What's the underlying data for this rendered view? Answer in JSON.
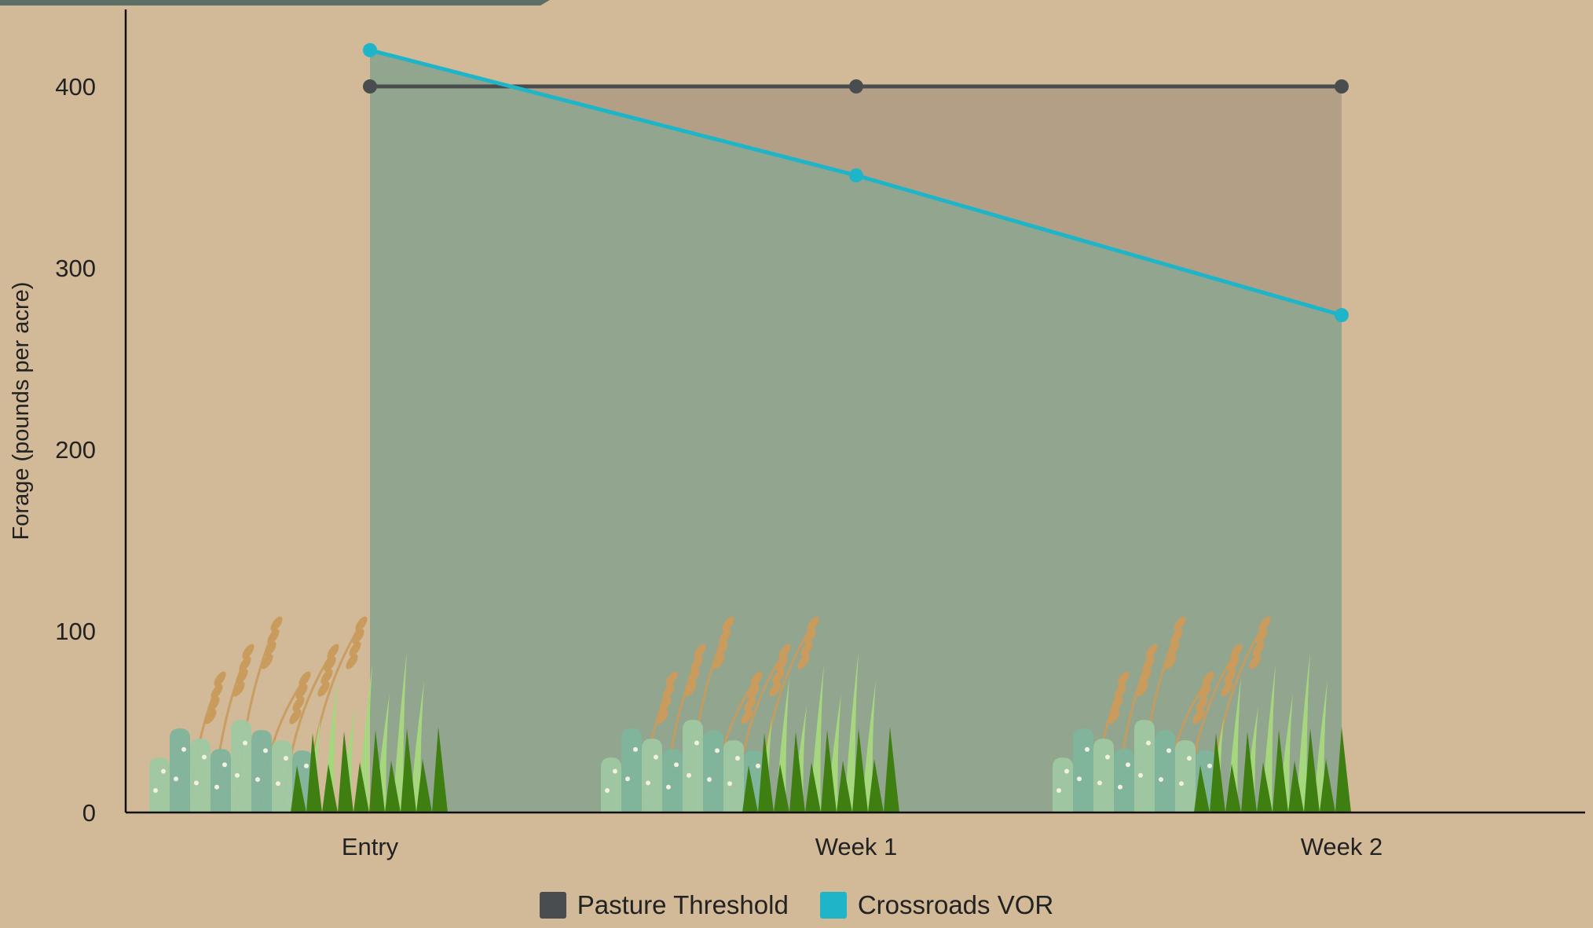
{
  "chart_data": {
    "type": "line",
    "title": "",
    "xlabel": "",
    "ylabel": "Forage (pounds per acre)",
    "categories": [
      "Entry",
      "Week 1",
      "Week 2"
    ],
    "y_ticks": [
      "0",
      "100",
      "200",
      "300",
      "400"
    ],
    "ylim": [
      0,
      445
    ],
    "grid": false,
    "legend_position": "bottom",
    "series": [
      {
        "name": "Pasture Threshold",
        "values": [
          400,
          400,
          400
        ],
        "color": "#4a4d4f"
      },
      {
        "name": "Crossroads VOR",
        "values": [
          420,
          351,
          274
        ],
        "color": "#1fb5c9"
      }
    ],
    "colors": {
      "background": "#d2b997",
      "area_under_vor": "#92a58f",
      "area_between": "#b39f85",
      "top_band": "#5c6f66",
      "grass_dark": "#3f7f12",
      "grass_light": "#a6d77e",
      "grass_teal": "#7fb49c",
      "grass_dry": "#c99b5c"
    }
  }
}
